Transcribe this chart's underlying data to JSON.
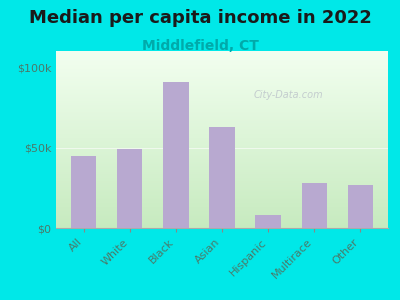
{
  "title": "Median per capita income in 2022",
  "subtitle": "Middlefield, CT",
  "categories": [
    "All",
    "White",
    "Black",
    "Asian",
    "Hispanic",
    "Multirace",
    "Other"
  ],
  "values": [
    45000,
    49000,
    91000,
    63000,
    8000,
    28000,
    27000
  ],
  "bar_color": "#b8a9d0",
  "background_outer": "#00e8e8",
  "background_inner_top": "#c8e8c0",
  "background_inner_bottom": "#f0faf0",
  "title_color": "#1a1a1a",
  "subtitle_color": "#00aaaa",
  "axis_label_color": "#4a7a6a",
  "tick_color": "#4a7a6a",
  "ylim": [
    0,
    110000
  ],
  "yticks": [
    0,
    50000,
    100000
  ],
  "ytick_labels": [
    "$0",
    "$50k",
    "$100k"
  ],
  "watermark": "City-Data.com",
  "title_fontsize": 13,
  "subtitle_fontsize": 10,
  "tick_fontsize": 8
}
